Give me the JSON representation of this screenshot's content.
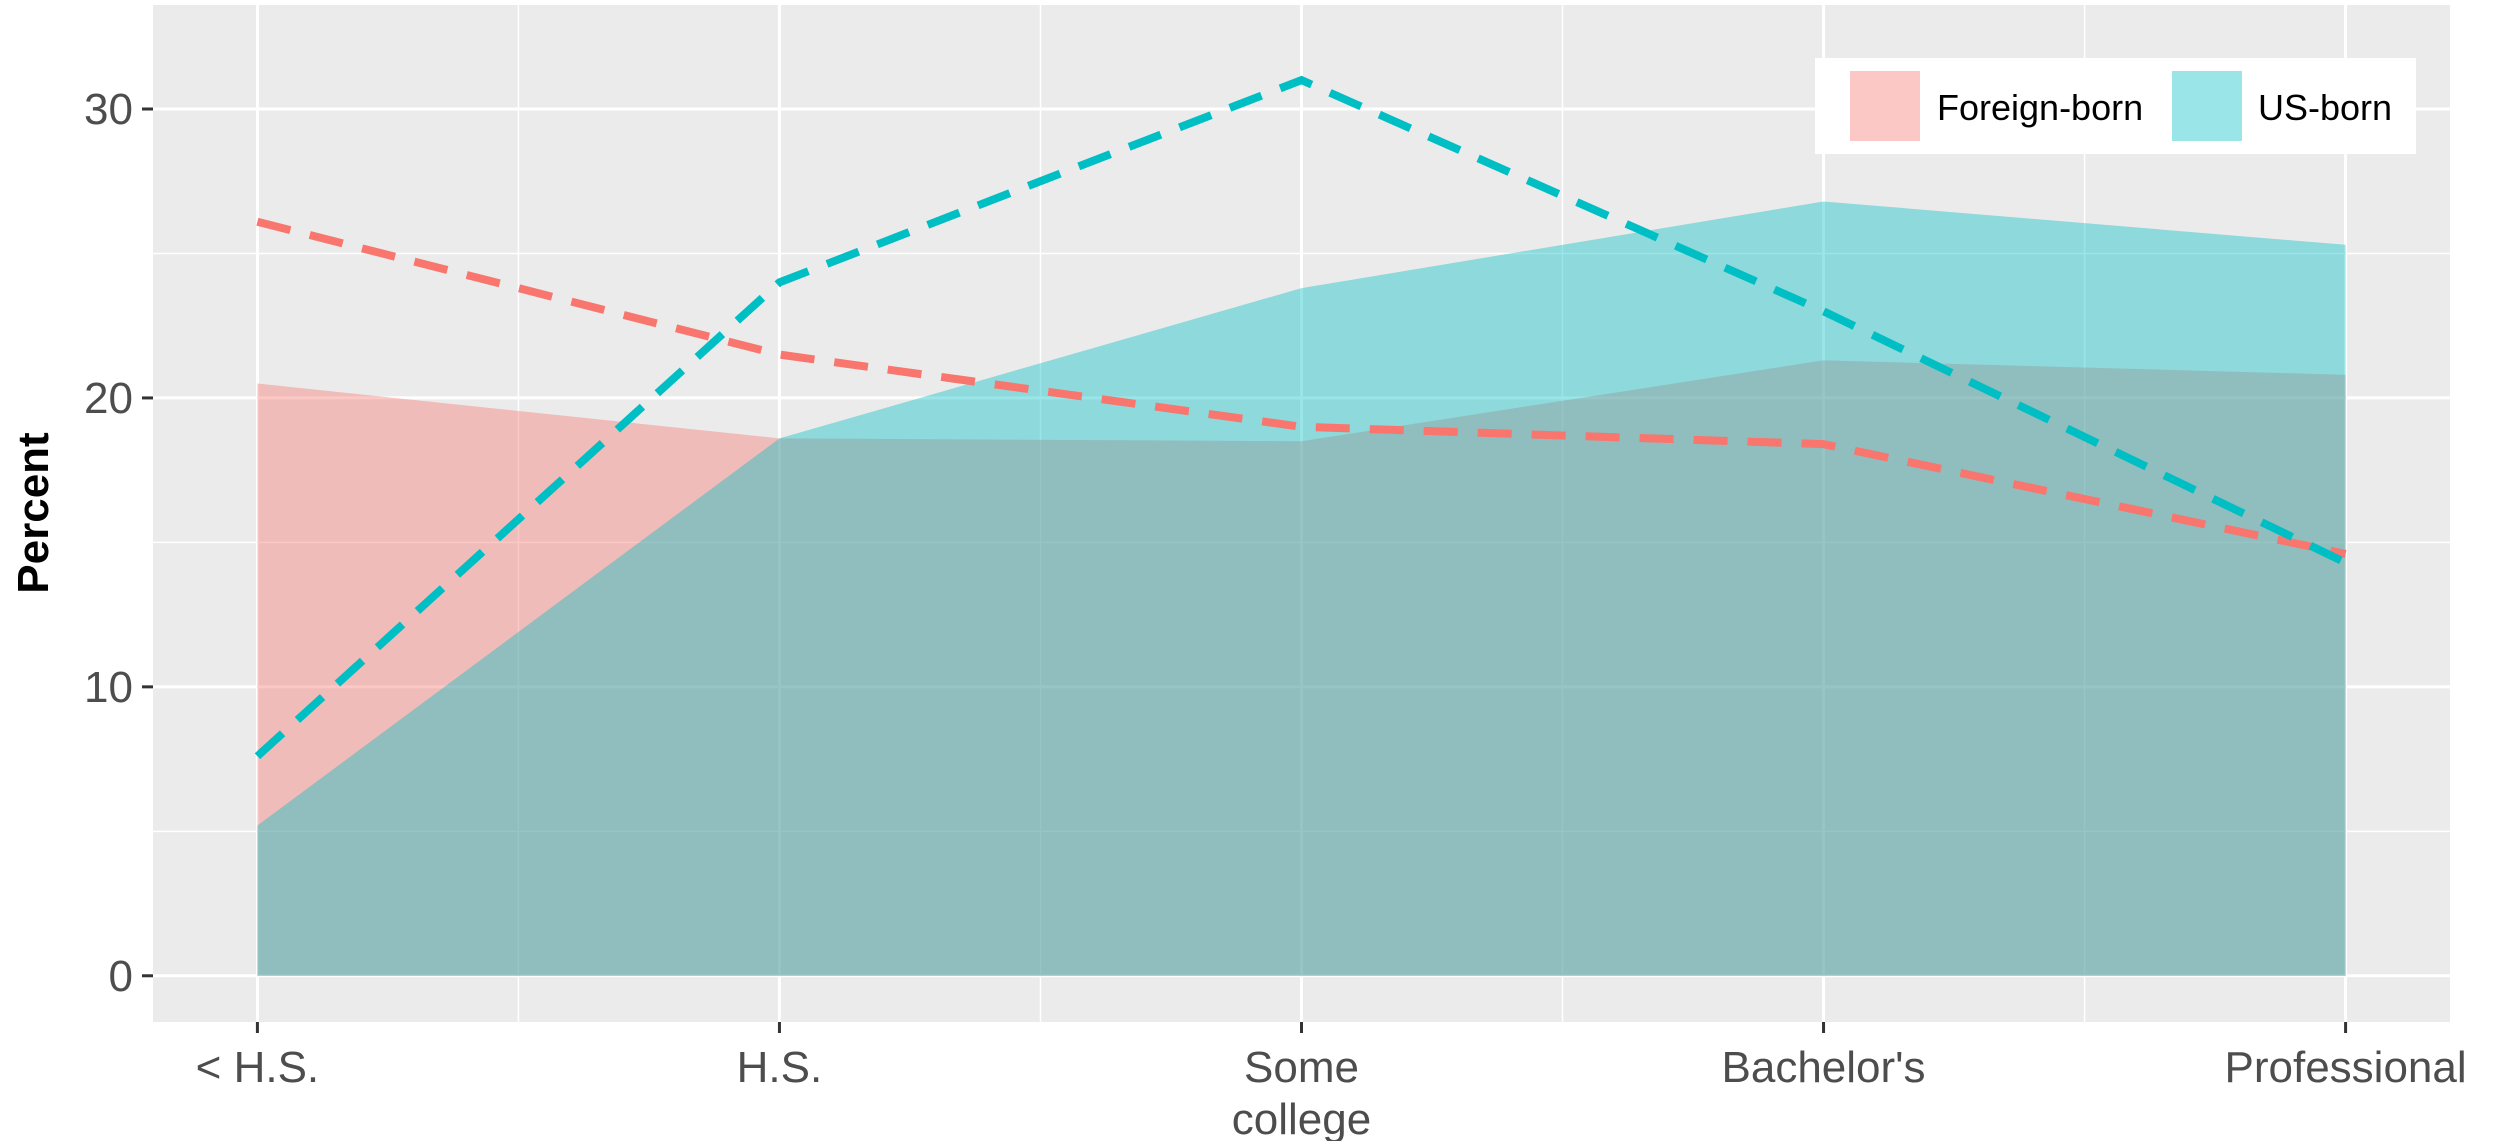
{
  "chart_data": {
    "type": "area",
    "categories": [
      "< H.S.",
      "H.S.",
      "Some college",
      "Bachelor's",
      "Professional"
    ],
    "category_lines": [
      [
        "< H.S."
      ],
      [
        "H.S."
      ],
      [
        "Some",
        "college"
      ],
      [
        "Bachelor's"
      ],
      [
        "Professional"
      ]
    ],
    "xlabel": "",
    "ylabel": "Percent",
    "ylim": [
      -1.6,
      33.6
    ],
    "yticks": [
      0,
      10,
      20,
      30
    ],
    "grid": true,
    "legend_position": "top-right",
    "area_series": [
      {
        "name": "Foreign-born",
        "color": "#F8766D",
        "values": [
          20.5,
          18.6,
          18.5,
          21.3,
          20.8
        ]
      },
      {
        "name": "US-born",
        "color": "#00BFC4",
        "values": [
          5.2,
          18.6,
          23.8,
          26.8,
          25.3
        ]
      }
    ],
    "line_series": [
      {
        "group": "Foreign-born",
        "color": "#F8766D",
        "style": "dashed",
        "values": [
          26.1,
          21.5,
          19.0,
          18.4,
          14.6
        ]
      },
      {
        "group": "US-born",
        "color": "#00BFC4",
        "style": "dashed",
        "values": [
          7.6,
          24.0,
          31.0,
          23.0,
          14.3
        ]
      }
    ]
  }
}
